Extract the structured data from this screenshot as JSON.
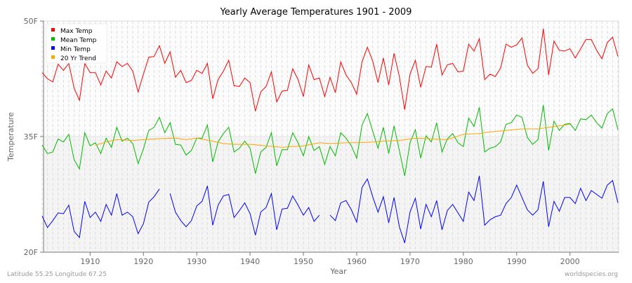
{
  "chart_data": {
    "type": "line",
    "title": "Yearly Average Temperatures 1901 - 2009",
    "xlabel": "Year",
    "ylabel": "Temperature",
    "xlim": [
      1901,
      2009
    ],
    "ylim": [
      20,
      50
    ],
    "yticks": [
      {
        "value": 50,
        "label": "50F"
      },
      {
        "value": 35,
        "label": "35F"
      },
      {
        "value": 20,
        "label": "20F"
      }
    ],
    "xticks": [
      {
        "value": 1910,
        "label": "1910"
      },
      {
        "value": 1920,
        "label": "1920"
      },
      {
        "value": 1930,
        "label": "1930"
      },
      {
        "value": 1940,
        "label": "1940"
      },
      {
        "value": 1950,
        "label": "1950"
      },
      {
        "value": 1960,
        "label": "1960"
      },
      {
        "value": 1970,
        "label": "1970"
      },
      {
        "value": 1980,
        "label": "1980"
      },
      {
        "value": 1990,
        "label": "1990"
      },
      {
        "value": 2000,
        "label": "2000"
      }
    ],
    "grid": "vertical dashed per year",
    "legend_position": "top-left",
    "x_start": 1901,
    "series": [
      {
        "name": "Max Temp",
        "color": "#ff0000",
        "values": [
          43.3,
          42.5,
          42.1,
          44.4,
          43.6,
          44.5,
          41.3,
          39.7,
          44.5,
          43.3,
          43.3,
          41.7,
          43.5,
          42.6,
          44.7,
          44.1,
          44.5,
          43.5,
          40.8,
          43.1,
          45.3,
          45.4,
          46.8,
          44.5,
          46.0,
          42.7,
          43.6,
          42.0,
          42.3,
          43.6,
          43.2,
          44.5,
          39.9,
          42.4,
          43.5,
          44.9,
          41.6,
          41.5,
          42.6,
          42.0,
          38.3,
          40.8,
          41.5,
          43.4,
          39.5,
          40.9,
          41.0,
          43.8,
          42.4,
          40.2,
          44.3,
          42.4,
          42.6,
          40.2,
          42.7,
          40.7,
          44.7,
          43.0,
          42.0,
          40.5,
          44.7,
          46.6,
          44.8,
          42.0,
          45.2,
          41.7,
          45.8,
          42.8,
          38.5,
          43.1,
          44.9,
          41.4,
          44.1,
          44.0,
          47.0,
          43.0,
          44.3,
          44.5,
          43.4,
          43.5,
          47.0,
          46.1,
          47.7,
          42.4,
          43.1,
          42.8,
          43.9,
          47.0,
          46.6,
          46.9,
          47.8,
          44.3,
          43.2,
          43.8,
          49.0,
          43.0,
          47.4,
          46.2,
          46.1,
          46.4,
          45.2,
          46.4,
          47.6,
          47.6,
          46.2,
          45.1,
          47.2,
          47.9,
          45.4
        ]
      },
      {
        "name": "Mean Temp",
        "color": "#00bb00",
        "values": [
          33.9,
          32.8,
          33.0,
          34.7,
          34.3,
          35.3,
          32.0,
          30.8,
          35.5,
          33.8,
          34.2,
          32.8,
          34.8,
          33.6,
          36.2,
          34.4,
          34.8,
          34.1,
          31.5,
          33.4,
          35.8,
          36.2,
          37.5,
          35.5,
          36.8,
          34.0,
          33.9,
          32.6,
          33.2,
          34.8,
          34.8,
          36.5,
          31.7,
          34.3,
          35.4,
          36.2,
          33.0,
          33.5,
          34.4,
          33.5,
          30.2,
          33.0,
          33.6,
          35.5,
          31.2,
          33.3,
          33.3,
          35.5,
          34.2,
          32.5,
          35.0,
          33.2,
          33.7,
          31.4,
          33.7,
          32.5,
          35.5,
          34.8,
          33.8,
          32.2,
          36.5,
          38.0,
          35.7,
          33.5,
          36.2,
          32.8,
          36.4,
          33.2,
          29.9,
          34.2,
          35.9,
          32.2,
          35.1,
          34.3,
          36.8,
          33.0,
          34.7,
          35.4,
          34.2,
          33.7,
          37.4,
          36.3,
          38.8,
          33.0,
          33.5,
          33.7,
          34.3,
          36.6,
          36.8,
          37.8,
          37.5,
          34.9,
          34.0,
          34.6,
          39.1,
          33.2,
          37.0,
          35.8,
          36.6,
          36.7,
          35.8,
          37.3,
          37.2,
          37.8,
          36.8,
          36.1,
          38.0,
          38.6,
          35.9
        ]
      },
      {
        "name": "Min Temp",
        "color": "#0000ff",
        "values": [
          24.7,
          23.2,
          24.1,
          25.1,
          25.0,
          26.1,
          22.7,
          21.9,
          26.6,
          24.5,
          25.2,
          24.0,
          26.2,
          24.8,
          27.6,
          24.8,
          25.2,
          24.6,
          22.4,
          23.7,
          26.5,
          27.2,
          28.2,
          null,
          27.6,
          25.2,
          24.1,
          23.3,
          24.1,
          26.0,
          26.6,
          28.6,
          23.5,
          26.1,
          27.3,
          27.5,
          24.5,
          25.4,
          26.4,
          25.0,
          22.2,
          25.2,
          25.8,
          27.6,
          22.9,
          25.6,
          25.7,
          27.3,
          26.1,
          24.8,
          25.8,
          24.0,
          24.8,
          null,
          24.8,
          24.1,
          26.4,
          26.7,
          25.5,
          23.9,
          28.4,
          29.5,
          27.2,
          25.2,
          27.2,
          23.8,
          27.1,
          23.3,
          21.2,
          25.2,
          27.0,
          23.0,
          26.2,
          24.6,
          26.7,
          22.9,
          25.4,
          26.2,
          25.1,
          24.0,
          27.8,
          26.7,
          29.9,
          23.5,
          24.2,
          24.6,
          24.8,
          26.3,
          27.1,
          28.7,
          27.1,
          25.5,
          24.8,
          25.5,
          29.2,
          23.3,
          26.6,
          25.3,
          27.1,
          27.1,
          26.3,
          28.3,
          26.7,
          28.0,
          27.5,
          27.0,
          28.7,
          29.3,
          26.4
        ]
      },
      {
        "name": "20 Yr Trend",
        "color": "#ffa500",
        "x": [
          1911,
          1913,
          1915,
          1918,
          1922,
          1926,
          1928,
          1930,
          1933,
          1935,
          1937,
          1940,
          1943,
          1946,
          1948,
          1950,
          1953,
          1955,
          1958,
          1960,
          1963,
          1965,
          1968,
          1971,
          1974,
          1977,
          1980,
          1983,
          1985,
          1988,
          1991,
          1994,
          1997,
          2000
        ],
        "values": [
          33.9,
          34.3,
          34.6,
          34.5,
          34.7,
          34.8,
          34.6,
          34.8,
          34.4,
          34.1,
          34.0,
          34.0,
          33.8,
          33.6,
          33.7,
          33.8,
          34.2,
          34.1,
          34.2,
          34.2,
          34.3,
          34.4,
          34.5,
          34.8,
          34.7,
          34.6,
          35.3,
          35.4,
          35.6,
          35.8,
          36.0,
          36.0,
          36.3,
          36.6
        ]
      }
    ]
  },
  "footer": {
    "location": "Latitude 55.25 Longitude 67.25",
    "source": "worldspecies.org"
  }
}
